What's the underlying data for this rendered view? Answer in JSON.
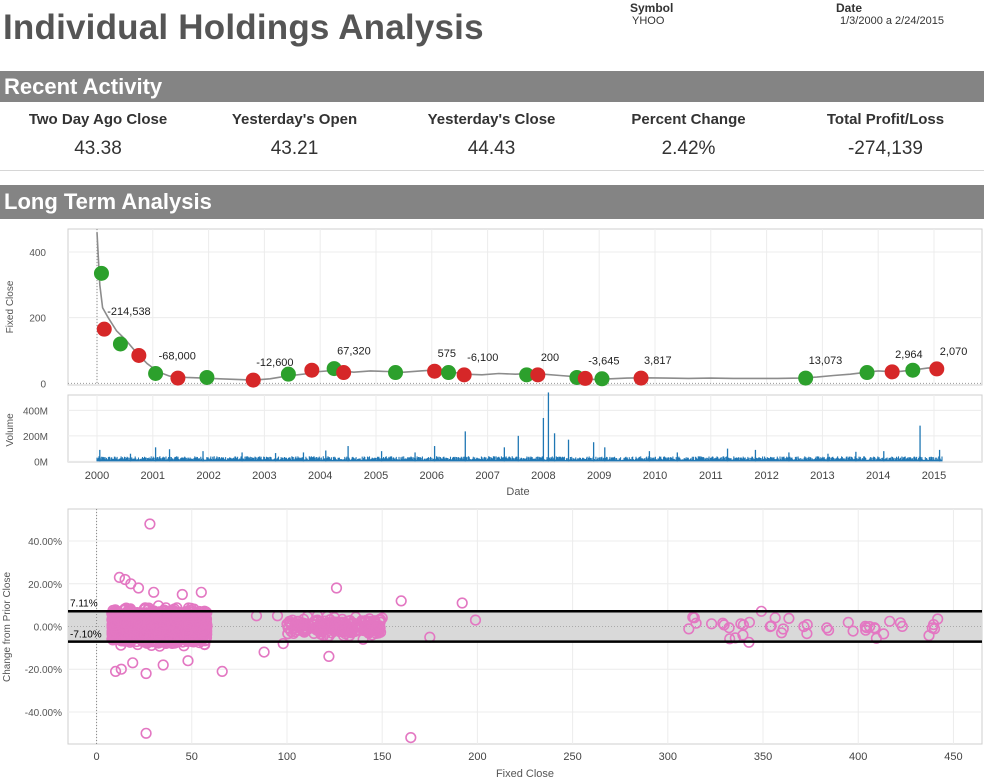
{
  "header": {
    "title": "Individual Holdings Analysis",
    "symbol_label": "Symbol",
    "symbol_value": "YHOO",
    "date_label": "Date",
    "date_value": "1/3/2000 a 2/24/2015"
  },
  "recent_activity": {
    "title": "Recent Activity",
    "kpis": [
      {
        "label": "Two Day Ago Close",
        "value": "43.38"
      },
      {
        "label": "Yesterday's Open",
        "value": "43.21"
      },
      {
        "label": "Yesterday's Close",
        "value": "44.43"
      },
      {
        "label": "Percent Change",
        "value": "2.42%"
      },
      {
        "label": "Total Profit/Loss",
        "value": "-274,139"
      }
    ]
  },
  "long_term": {
    "title": "Long Term Analysis"
  },
  "colors": {
    "band": "#848484",
    "buy": "#2ca02c",
    "sell": "#d62728",
    "price_line": "#8c8c8c",
    "volume": "#1f77b4",
    "scatter": "#e377c2",
    "reference_band": "#d9d9d9"
  },
  "chart_data": [
    {
      "type": "line",
      "name": "fixed-close-chart",
      "ylabel": "Fixed Close",
      "ylim": [
        -5,
        470
      ],
      "yticks": [
        0,
        200,
        400
      ],
      "xticks": [
        "2000",
        "2001",
        "2002",
        "2003",
        "2004",
        "2005",
        "2006",
        "2007",
        "2008",
        "2009",
        "2010",
        "2011",
        "2012",
        "2013",
        "2014",
        "2015"
      ],
      "price_line": [
        [
          2000.0,
          460
        ],
        [
          2000.05,
          300
        ],
        [
          2000.1,
          230
        ],
        [
          2000.2,
          200
        ],
        [
          2000.35,
          160
        ],
        [
          2000.5,
          135
        ],
        [
          2000.7,
          95
        ],
        [
          2000.9,
          60
        ],
        [
          2001.1,
          35
        ],
        [
          2001.3,
          22
        ],
        [
          2001.6,
          18
        ],
        [
          2001.9,
          16
        ],
        [
          2002.2,
          14
        ],
        [
          2002.5,
          12
        ],
        [
          2002.8,
          10
        ],
        [
          2003.1,
          14
        ],
        [
          2003.4,
          22
        ],
        [
          2003.8,
          30
        ],
        [
          2004.0,
          36
        ],
        [
          2004.3,
          40
        ],
        [
          2004.6,
          34
        ],
        [
          2004.9,
          38
        ],
        [
          2005.2,
          36
        ],
        [
          2005.5,
          34
        ],
        [
          2005.8,
          38
        ],
        [
          2006.0,
          40
        ],
        [
          2006.3,
          36
        ],
        [
          2006.6,
          28
        ],
        [
          2006.9,
          26
        ],
        [
          2007.2,
          30
        ],
        [
          2007.5,
          28
        ],
        [
          2007.8,
          30
        ],
        [
          2008.0,
          28
        ],
        [
          2008.3,
          24
        ],
        [
          2008.6,
          20
        ],
        [
          2008.9,
          12
        ],
        [
          2009.2,
          14
        ],
        [
          2009.5,
          16
        ],
        [
          2009.8,
          17
        ],
        [
          2010.2,
          16
        ],
        [
          2010.6,
          15
        ],
        [
          2011.0,
          16
        ],
        [
          2011.4,
          15
        ],
        [
          2011.8,
          15
        ],
        [
          2012.2,
          15
        ],
        [
          2012.6,
          16
        ],
        [
          2012.9,
          19
        ],
        [
          2013.2,
          24
        ],
        [
          2013.5,
          28
        ],
        [
          2013.8,
          34
        ],
        [
          2014.0,
          38
        ],
        [
          2014.3,
          35
        ],
        [
          2014.6,
          40
        ],
        [
          2014.9,
          47
        ],
        [
          2015.15,
          44
        ]
      ],
      "trades": [
        {
          "x": 2000.08,
          "y": 335,
          "side": "buy",
          "label": ""
        },
        {
          "x": 2000.13,
          "y": 165,
          "side": "sell",
          "label": "-214,538"
        },
        {
          "x": 2000.42,
          "y": 120,
          "side": "buy",
          "label": ""
        },
        {
          "x": 2000.75,
          "y": 85,
          "side": "sell",
          "label": ""
        },
        {
          "x": 2001.05,
          "y": 30,
          "side": "buy",
          "label": "-68,000"
        },
        {
          "x": 2001.45,
          "y": 16,
          "side": "sell",
          "label": ""
        },
        {
          "x": 2001.97,
          "y": 18,
          "side": "buy",
          "label": ""
        },
        {
          "x": 2002.8,
          "y": 10,
          "side": "sell",
          "label": "-12,600"
        },
        {
          "x": 2003.43,
          "y": 28,
          "side": "buy",
          "label": ""
        },
        {
          "x": 2003.85,
          "y": 40,
          "side": "sell",
          "label": ""
        },
        {
          "x": 2004.25,
          "y": 45,
          "side": "buy",
          "label": "67,320"
        },
        {
          "x": 2004.42,
          "y": 33,
          "side": "sell",
          "label": ""
        },
        {
          "x": 2005.35,
          "y": 33,
          "side": "buy",
          "label": ""
        },
        {
          "x": 2006.05,
          "y": 37,
          "side": "sell",
          "label": "575"
        },
        {
          "x": 2006.3,
          "y": 33,
          "side": "buy",
          "label": ""
        },
        {
          "x": 2006.58,
          "y": 26,
          "side": "sell",
          "label": "-6,100"
        },
        {
          "x": 2007.7,
          "y": 26,
          "side": "buy",
          "label": ""
        },
        {
          "x": 2007.9,
          "y": 26,
          "side": "sell",
          "label": "200"
        },
        {
          "x": 2008.6,
          "y": 18,
          "side": "buy",
          "label": ""
        },
        {
          "x": 2008.75,
          "y": 15,
          "side": "sell",
          "label": "-3,645"
        },
        {
          "x": 2009.05,
          "y": 14,
          "side": "buy",
          "label": ""
        },
        {
          "x": 2009.75,
          "y": 16,
          "side": "sell",
          "label": "3,817"
        },
        {
          "x": 2012.7,
          "y": 16,
          "side": "buy",
          "label": "13,073"
        },
        {
          "x": 2013.8,
          "y": 33,
          "side": "buy",
          "label": ""
        },
        {
          "x": 2014.25,
          "y": 35,
          "side": "sell",
          "label": "2,964"
        },
        {
          "x": 2014.62,
          "y": 40,
          "side": "buy",
          "label": ""
        },
        {
          "x": 2015.05,
          "y": 44,
          "side": "sell",
          "label": "2,070"
        }
      ]
    },
    {
      "type": "bar",
      "name": "volume-chart",
      "ylabel": "Volume",
      "xlabel": "Date",
      "ylim": [
        -5000000,
        520000000
      ],
      "yticks": [
        0,
        200000000,
        400000000
      ],
      "ytick_labels": [
        "0M",
        "200M",
        "400M"
      ],
      "xticks": [
        "2000",
        "2001",
        "2002",
        "2003",
        "2004",
        "2005",
        "2006",
        "2007",
        "2008",
        "2009",
        "2010",
        "2011",
        "2012",
        "2013",
        "2014",
        "2015"
      ],
      "baseline_volume": 25000000,
      "spikes": [
        [
          2000.05,
          90000000
        ],
        [
          2000.6,
          60000000
        ],
        [
          2001.05,
          110000000
        ],
        [
          2001.3,
          95000000
        ],
        [
          2001.9,
          80000000
        ],
        [
          2002.6,
          70000000
        ],
        [
          2003.2,
          65000000
        ],
        [
          2003.7,
          70000000
        ],
        [
          2004.1,
          85000000
        ],
        [
          2004.5,
          120000000
        ],
        [
          2005.1,
          80000000
        ],
        [
          2005.7,
          70000000
        ],
        [
          2006.05,
          120000000
        ],
        [
          2006.6,
          235000000
        ],
        [
          2007.3,
          110000000
        ],
        [
          2007.55,
          200000000
        ],
        [
          2008.0,
          340000000
        ],
        [
          2008.09,
          540000000
        ],
        [
          2008.2,
          220000000
        ],
        [
          2008.45,
          170000000
        ],
        [
          2008.9,
          150000000
        ],
        [
          2009.1,
          110000000
        ],
        [
          2009.9,
          80000000
        ],
        [
          2010.4,
          70000000
        ],
        [
          2011.3,
          100000000
        ],
        [
          2011.8,
          90000000
        ],
        [
          2012.4,
          70000000
        ],
        [
          2013.1,
          60000000
        ],
        [
          2013.6,
          75000000
        ],
        [
          2014.1,
          80000000
        ],
        [
          2014.75,
          280000000
        ],
        [
          2015.1,
          90000000
        ]
      ]
    },
    {
      "type": "scatter",
      "name": "change-vs-close-chart",
      "xlabel": "Fixed Close",
      "ylabel": "Change from Prior Close",
      "xlim": [
        -15,
        465
      ],
      "ylim": [
        -55,
        55
      ],
      "xticks": [
        0,
        50,
        100,
        150,
        200,
        250,
        300,
        350,
        400,
        450
      ],
      "yticks": [
        -40,
        -20,
        0,
        20,
        40
      ],
      "ytick_labels": [
        "-40.00%",
        "-20.00%",
        "0.00%",
        "20.00%",
        "40.00%"
      ],
      "reference_band": {
        "upper": 7.11,
        "lower": -7.1,
        "upper_label": "7.11%",
        "lower_label": "-7.10%"
      },
      "cluster_main": {
        "x_range": [
          8,
          58
        ],
        "count": 2600,
        "spread": 4.5
      },
      "cluster_mid": {
        "x_range": [
          100,
          150
        ],
        "count": 220,
        "spread": 2.8
      },
      "cluster_high": {
        "x_range": [
          310,
          445
        ],
        "count": 45,
        "spread": 4
      },
      "points": [
        [
          28,
          48
        ],
        [
          26,
          -50
        ],
        [
          165,
          -52
        ],
        [
          12,
          23
        ],
        [
          15,
          22
        ],
        [
          18,
          20
        ],
        [
          22,
          18
        ],
        [
          30,
          16
        ],
        [
          45,
          15
        ],
        [
          55,
          16
        ],
        [
          10,
          -21
        ],
        [
          13,
          -20
        ],
        [
          19,
          -17
        ],
        [
          26,
          -22
        ],
        [
          35,
          -18
        ],
        [
          48,
          -16
        ],
        [
          66,
          -21
        ],
        [
          126,
          18
        ],
        [
          122,
          -14
        ],
        [
          160,
          12
        ],
        [
          192,
          11
        ],
        [
          88,
          -12
        ],
        [
          98,
          -8
        ],
        [
          140,
          -6
        ],
        [
          175,
          -5
        ],
        [
          199,
          3
        ],
        [
          95,
          5
        ],
        [
          84,
          5
        ],
        [
          116,
          3
        ],
        [
          150,
          4
        ]
      ]
    }
  ]
}
